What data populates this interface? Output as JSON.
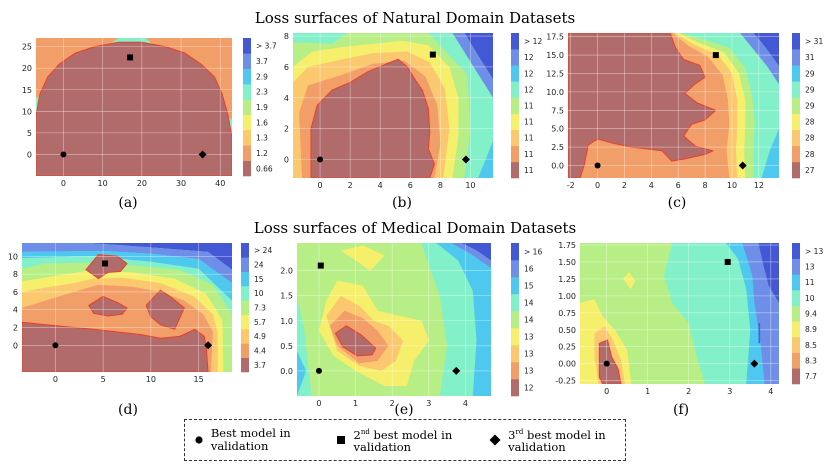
{
  "titles": {
    "natural": "Loss surfaces of Natural Domain Datasets",
    "medical": "Loss surfaces of Medical Domain Datasets"
  },
  "legend": {
    "best": "Best model in validation",
    "second": {
      "prefix": "2",
      "sup": "nd",
      "rest": " best model in validation"
    },
    "third": {
      "prefix": "3",
      "sup": "rd",
      "rest": " best model in validation"
    }
  },
  "colors": {
    "levels": [
      "#b26b6b",
      "#f29e68",
      "#fbc86f",
      "#f6ef6c",
      "#b7ee85",
      "#82f0c8",
      "#4fc8f0",
      "#6f8ee8",
      "#4458d6"
    ],
    "contour": "#e8402a"
  },
  "chart_data": [
    {
      "type": "heatmap",
      "label": "(a)",
      "xlim": [
        -7,
        43
      ],
      "ylim": [
        -5,
        27
      ],
      "xticks": [
        0,
        10,
        20,
        30,
        40
      ],
      "yticks": [
        0,
        5,
        10,
        15,
        20,
        25
      ],
      "colorbar": [
        "0.66",
        "1.2",
        "1.3",
        "1.6",
        "1.9",
        "2.3",
        "2.9",
        "3.7",
        "> 3.7"
      ],
      "markers": {
        "best": [
          0,
          0
        ],
        "second": [
          17,
          22.5
        ],
        "third": [
          35.5,
          0
        ]
      }
    },
    {
      "type": "heatmap",
      "label": "(b)",
      "xlim": [
        -1.8,
        11.5
      ],
      "ylim": [
        -1.2,
        8.2
      ],
      "xticks": [
        0,
        2,
        4,
        6,
        8,
        10
      ],
      "yticks": [
        0,
        2,
        4,
        6,
        8
      ],
      "colorbar": [
        "11",
        "11",
        "11",
        "11",
        "11",
        "12",
        "12",
        "12",
        "> 12"
      ],
      "markers": {
        "best": [
          0,
          0
        ],
        "second": [
          7.5,
          6.8
        ],
        "third": [
          9.7,
          0
        ]
      }
    },
    {
      "type": "heatmap",
      "label": "(c)",
      "xlim": [
        -2.2,
        13.5
      ],
      "ylim": [
        -1.7,
        18
      ],
      "xticks": [
        -2,
        0,
        2,
        4,
        6,
        8,
        10,
        12
      ],
      "yticks": [
        0.0,
        2.5,
        5.0,
        7.5,
        10.0,
        12.5,
        15.0,
        17.5
      ],
      "tickFmt": "f1y",
      "colorbar": [
        "27",
        "28",
        "28",
        "28",
        "29",
        "29",
        "29",
        "31",
        "> 31"
      ],
      "markers": {
        "best": [
          0,
          0
        ],
        "second": [
          8.8,
          15
        ],
        "third": [
          10.8,
          0
        ]
      }
    },
    {
      "type": "heatmap",
      "label": "(d)",
      "xlim": [
        -3.5,
        18.5
      ],
      "ylim": [
        -3,
        11.5
      ],
      "xticks": [
        0,
        5,
        10,
        15
      ],
      "yticks": [
        0,
        2,
        4,
        6,
        8,
        10
      ],
      "colorbar": [
        "3.7",
        "4.4",
        "4.9",
        "5.7",
        "7.3",
        "10",
        "15",
        "24",
        "> 24"
      ],
      "markers": {
        "best": [
          0,
          0
        ],
        "second": [
          5.2,
          9.2
        ],
        "third": [
          16,
          0
        ]
      }
    },
    {
      "type": "heatmap",
      "label": "(e)",
      "xlim": [
        -0.6,
        4.7
      ],
      "ylim": [
        -0.5,
        2.55
      ],
      "xticks": [
        0,
        1,
        2,
        3,
        4
      ],
      "yticks": [
        0.0,
        0.5,
        1.0,
        1.5,
        2.0
      ],
      "tickFmt": "f1y",
      "colorbar": [
        "12",
        "13",
        "13",
        "13",
        "14",
        "14",
        "15",
        "16",
        "> 16"
      ],
      "markers": {
        "best": [
          0,
          0
        ],
        "second": [
          0.05,
          2.1
        ],
        "third": [
          3.75,
          0
        ]
      }
    },
    {
      "type": "heatmap",
      "label": "(f)",
      "xlim": [
        -0.65,
        4.2
      ],
      "ylim": [
        -0.3,
        1.78
      ],
      "xticks": [
        0,
        1,
        2,
        3,
        4
      ],
      "yticks": [
        -0.25,
        0.0,
        0.25,
        0.5,
        0.75,
        1.0,
        1.25,
        1.5,
        1.75
      ],
      "tickFmt": "f2y",
      "colorbar": [
        "7.7",
        "8.3",
        "8.5",
        "8.9",
        "9.4",
        "10",
        "11",
        "13",
        "> 13"
      ],
      "markers": {
        "best": [
          0,
          0
        ],
        "second": [
          2.95,
          1.5
        ],
        "third": [
          3.6,
          0
        ]
      }
    }
  ]
}
